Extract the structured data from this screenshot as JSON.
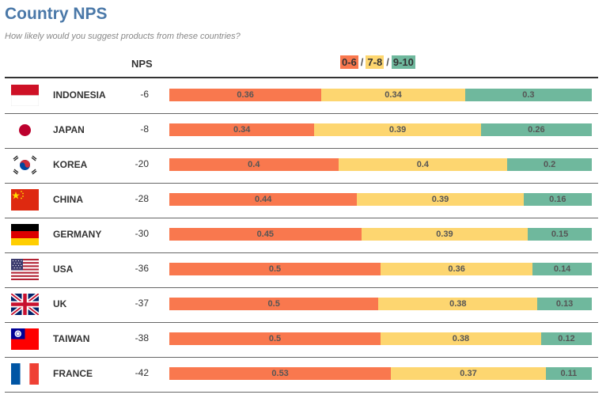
{
  "title": "Country NPS",
  "subtitle": "How likely would you suggest products from these countries?",
  "nps_header": "NPS",
  "legend": {
    "items": [
      {
        "label": "0-6",
        "color": "#f9784e"
      },
      {
        "label": "7-8",
        "color": "#fdd670"
      },
      {
        "label": "9-10",
        "color": "#6fb89d"
      }
    ],
    "separator": "/"
  },
  "chart_data": {
    "type": "bar",
    "stacked": true,
    "orientation": "horizontal",
    "title": "Country NPS",
    "subtitle": "How likely would you suggest products from these countries?",
    "categories": [
      "INDONESIA",
      "JAPAN",
      "KOREA",
      "CHINA",
      "GERMANY",
      "USA",
      "UK",
      "TAIWAN",
      "FRANCE"
    ],
    "nps": [
      "-6",
      "-8",
      "-20",
      "-28",
      "-30",
      "-36",
      "-37",
      "-38",
      "-42"
    ],
    "series": [
      {
        "name": "0-6",
        "color": "#f9784e",
        "values": [
          "0.36",
          "0.34",
          "0.4",
          "0.44",
          "0.45",
          "0.5",
          "0.5",
          "0.5",
          "0.53"
        ]
      },
      {
        "name": "7-8",
        "color": "#fdd670",
        "values": [
          "0.34",
          "0.39",
          "0.4",
          "0.39",
          "0.39",
          "0.36",
          "0.38",
          "0.38",
          "0.37"
        ]
      },
      {
        "name": "9-10",
        "color": "#6fb89d",
        "values": [
          "0.3",
          "0.26",
          "0.2",
          "0.16",
          "0.15",
          "0.14",
          "0.13",
          "0.12",
          "0.11"
        ]
      }
    ],
    "flags": [
      "indonesia-flag",
      "japan-flag",
      "korea-flag",
      "china-flag",
      "germany-flag",
      "usa-flag",
      "uk-flag",
      "taiwan-flag",
      "france-flag"
    ]
  }
}
